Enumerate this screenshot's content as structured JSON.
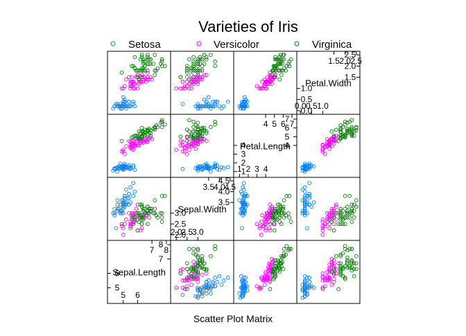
{
  "chart_data": {
    "type": "scatter",
    "title": "Varieties of Iris",
    "xlabel": "Scatter Plot Matrix",
    "ylabel": "",
    "legend_placement": "top",
    "grid": false,
    "variables": [
      "Sepal.Length",
      "Sepal.Width",
      "Petal.Length",
      "Petal.Width"
    ],
    "ranges": {
      "Sepal.Length": [
        4.0,
        8.2
      ],
      "Sepal.Width": [
        1.8,
        4.6
      ],
      "Petal.Length": [
        0.5,
        7.4
      ],
      "Petal.Width": [
        -0.1,
        2.6
      ]
    },
    "diagonal_ticks": {
      "Sepal.Length": {
        "lower": [
          5,
          6
        ],
        "upper": [
          7,
          8
        ]
      },
      "Sepal.Width": {
        "lower": [
          2.0,
          2.5,
          3.0
        ],
        "upper": [
          3.5,
          4.0,
          4.5
        ]
      },
      "Petal.Length": {
        "lower": [
          1,
          2,
          3,
          4
        ],
        "upper": [
          4,
          5,
          6,
          7
        ]
      },
      "Petal.Width": {
        "lower": [
          0.0,
          0.5,
          1.0
        ],
        "upper": [
          1.5,
          2.0,
          2.5
        ]
      }
    },
    "diagonal_tick_labels": {
      "Sepal.Length": {
        "lower": [
          "5",
          "6"
        ],
        "upper": [
          "7",
          "8"
        ]
      },
      "Sepal.Width": {
        "lower": [
          "2.0",
          "2.5",
          "3.0"
        ],
        "upper": [
          "3.5",
          "4.0",
          "4.5"
        ]
      },
      "Petal.Length": {
        "lower": [
          "1",
          "2",
          "3",
          "4"
        ],
        "upper": [
          "4",
          "5",
          "6",
          "7"
        ]
      },
      "Petal.Width": {
        "lower": [
          "0.0",
          "0.5",
          "1.0"
        ],
        "upper": [
          "1.5",
          "2.0",
          "2.5"
        ]
      }
    },
    "series": [
      {
        "name": "Setosa",
        "color": "#0080ff",
        "marker": "circle",
        "points": [
          [
            5.1,
            3.5,
            1.4,
            0.2
          ],
          [
            4.9,
            3.0,
            1.4,
            0.2
          ],
          [
            4.7,
            3.2,
            1.3,
            0.2
          ],
          [
            4.6,
            3.1,
            1.5,
            0.2
          ],
          [
            5.0,
            3.6,
            1.4,
            0.2
          ],
          [
            5.4,
            3.9,
            1.7,
            0.4
          ],
          [
            4.6,
            3.4,
            1.4,
            0.3
          ],
          [
            5.0,
            3.4,
            1.5,
            0.2
          ],
          [
            4.4,
            2.9,
            1.4,
            0.2
          ],
          [
            4.9,
            3.1,
            1.5,
            0.1
          ],
          [
            5.4,
            3.7,
            1.5,
            0.2
          ],
          [
            4.8,
            3.4,
            1.6,
            0.2
          ],
          [
            4.8,
            3.0,
            1.4,
            0.1
          ],
          [
            4.3,
            3.0,
            1.1,
            0.1
          ],
          [
            5.8,
            4.0,
            1.2,
            0.2
          ],
          [
            5.7,
            4.4,
            1.5,
            0.4
          ],
          [
            5.4,
            3.9,
            1.3,
            0.4
          ],
          [
            5.1,
            3.5,
            1.4,
            0.3
          ],
          [
            5.7,
            3.8,
            1.7,
            0.3
          ],
          [
            5.1,
            3.8,
            1.5,
            0.3
          ],
          [
            5.4,
            3.4,
            1.7,
            0.2
          ],
          [
            5.1,
            3.7,
            1.5,
            0.4
          ],
          [
            4.6,
            3.6,
            1.0,
            0.2
          ],
          [
            5.1,
            3.3,
            1.7,
            0.5
          ],
          [
            4.8,
            3.4,
            1.9,
            0.2
          ],
          [
            5.0,
            3.0,
            1.6,
            0.2
          ],
          [
            5.0,
            3.4,
            1.6,
            0.4
          ],
          [
            5.2,
            3.5,
            1.5,
            0.2
          ],
          [
            5.2,
            3.4,
            1.4,
            0.2
          ],
          [
            4.7,
            3.2,
            1.6,
            0.2
          ],
          [
            4.8,
            3.1,
            1.6,
            0.2
          ],
          [
            5.4,
            3.4,
            1.5,
            0.4
          ],
          [
            5.2,
            4.1,
            1.5,
            0.1
          ],
          [
            5.5,
            4.2,
            1.4,
            0.2
          ],
          [
            4.9,
            3.1,
            1.5,
            0.2
          ],
          [
            5.0,
            3.2,
            1.2,
            0.2
          ],
          [
            5.5,
            3.5,
            1.3,
            0.2
          ],
          [
            4.9,
            3.6,
            1.4,
            0.1
          ],
          [
            4.4,
            3.0,
            1.3,
            0.2
          ],
          [
            5.1,
            3.4,
            1.5,
            0.2
          ],
          [
            5.0,
            3.5,
            1.3,
            0.3
          ],
          [
            4.5,
            2.3,
            1.3,
            0.3
          ],
          [
            4.4,
            3.2,
            1.3,
            0.2
          ],
          [
            5.0,
            3.5,
            1.6,
            0.6
          ],
          [
            5.1,
            3.8,
            1.9,
            0.4
          ],
          [
            4.8,
            3.0,
            1.4,
            0.3
          ],
          [
            5.1,
            3.8,
            1.6,
            0.2
          ],
          [
            4.6,
            3.2,
            1.4,
            0.2
          ],
          [
            5.3,
            3.7,
            1.5,
            0.2
          ],
          [
            5.0,
            3.3,
            1.4,
            0.2
          ]
        ]
      },
      {
        "name": "Versicolor",
        "color": "#ff00ff",
        "marker": "circle",
        "points": [
          [
            7.0,
            3.2,
            4.7,
            1.4
          ],
          [
            6.4,
            3.2,
            4.5,
            1.5
          ],
          [
            6.9,
            3.1,
            4.9,
            1.5
          ],
          [
            5.5,
            2.3,
            4.0,
            1.3
          ],
          [
            6.5,
            2.8,
            4.6,
            1.5
          ],
          [
            5.7,
            2.8,
            4.5,
            1.3
          ],
          [
            6.3,
            3.3,
            4.7,
            1.6
          ],
          [
            4.9,
            2.4,
            3.3,
            1.0
          ],
          [
            6.6,
            2.9,
            4.6,
            1.3
          ],
          [
            5.2,
            2.7,
            3.9,
            1.4
          ],
          [
            5.0,
            2.0,
            3.5,
            1.0
          ],
          [
            5.9,
            3.0,
            4.2,
            1.5
          ],
          [
            6.0,
            2.2,
            4.0,
            1.0
          ],
          [
            6.1,
            2.9,
            4.7,
            1.4
          ],
          [
            5.6,
            2.9,
            3.6,
            1.3
          ],
          [
            6.7,
            3.1,
            4.4,
            1.4
          ],
          [
            5.6,
            3.0,
            4.5,
            1.5
          ],
          [
            5.8,
            2.7,
            4.1,
            1.0
          ],
          [
            6.2,
            2.2,
            4.5,
            1.5
          ],
          [
            5.6,
            2.5,
            3.9,
            1.1
          ],
          [
            5.9,
            3.2,
            4.8,
            1.8
          ],
          [
            6.1,
            2.8,
            4.0,
            1.3
          ],
          [
            6.3,
            2.5,
            4.9,
            1.5
          ],
          [
            6.1,
            2.8,
            4.7,
            1.2
          ],
          [
            6.4,
            2.9,
            4.3,
            1.3
          ],
          [
            6.6,
            3.0,
            4.4,
            1.4
          ],
          [
            6.8,
            2.8,
            4.8,
            1.4
          ],
          [
            6.7,
            3.0,
            5.0,
            1.7
          ],
          [
            6.0,
            2.9,
            4.5,
            1.5
          ],
          [
            5.7,
            2.6,
            3.5,
            1.0
          ],
          [
            5.5,
            2.4,
            3.8,
            1.1
          ],
          [
            5.5,
            2.4,
            3.7,
            1.0
          ],
          [
            5.8,
            2.7,
            3.9,
            1.2
          ],
          [
            6.0,
            2.7,
            5.1,
            1.6
          ],
          [
            5.4,
            3.0,
            4.5,
            1.5
          ],
          [
            6.0,
            3.4,
            4.5,
            1.6
          ],
          [
            6.7,
            3.1,
            4.7,
            1.5
          ],
          [
            6.3,
            2.3,
            4.4,
            1.3
          ],
          [
            5.6,
            3.0,
            4.1,
            1.3
          ],
          [
            5.5,
            2.5,
            4.0,
            1.3
          ],
          [
            5.5,
            2.6,
            4.4,
            1.2
          ],
          [
            6.1,
            3.0,
            4.6,
            1.4
          ],
          [
            5.8,
            2.6,
            4.0,
            1.2
          ],
          [
            5.0,
            2.3,
            3.3,
            1.0
          ],
          [
            5.6,
            2.7,
            4.2,
            1.3
          ],
          [
            5.7,
            3.0,
            4.2,
            1.2
          ],
          [
            5.7,
            2.9,
            4.2,
            1.3
          ],
          [
            6.2,
            2.9,
            4.3,
            1.3
          ],
          [
            5.1,
            2.5,
            3.0,
            1.1
          ],
          [
            5.7,
            2.8,
            4.1,
            1.3
          ]
        ]
      },
      {
        "name": "Virginica",
        "color": "#008000",
        "marker": "circle",
        "points": [
          [
            6.3,
            3.3,
            6.0,
            2.5
          ],
          [
            5.8,
            2.7,
            5.1,
            1.9
          ],
          [
            7.1,
            3.0,
            5.9,
            2.1
          ],
          [
            6.3,
            2.9,
            5.6,
            1.8
          ],
          [
            6.5,
            3.0,
            5.8,
            2.2
          ],
          [
            7.6,
            3.0,
            6.6,
            2.1
          ],
          [
            4.9,
            2.5,
            4.5,
            1.7
          ],
          [
            7.3,
            2.9,
            6.3,
            1.8
          ],
          [
            6.7,
            2.5,
            5.8,
            1.8
          ],
          [
            7.2,
            3.6,
            6.1,
            2.5
          ],
          [
            6.5,
            3.2,
            5.1,
            2.0
          ],
          [
            6.4,
            2.7,
            5.3,
            1.9
          ],
          [
            6.8,
            3.0,
            5.5,
            2.1
          ],
          [
            5.7,
            2.5,
            5.0,
            2.0
          ],
          [
            5.8,
            2.8,
            5.1,
            2.4
          ],
          [
            6.4,
            3.2,
            5.3,
            2.3
          ],
          [
            6.5,
            3.0,
            5.5,
            1.8
          ],
          [
            7.7,
            3.8,
            6.7,
            2.2
          ],
          [
            7.7,
            2.6,
            6.9,
            2.3
          ],
          [
            6.0,
            2.2,
            5.0,
            1.5
          ],
          [
            6.9,
            3.2,
            5.7,
            2.3
          ],
          [
            5.6,
            2.8,
            4.9,
            2.0
          ],
          [
            7.7,
            2.8,
            6.7,
            2.0
          ],
          [
            6.3,
            2.7,
            4.9,
            1.8
          ],
          [
            6.7,
            3.3,
            5.7,
            2.1
          ],
          [
            7.2,
            3.2,
            6.0,
            1.8
          ],
          [
            6.2,
            2.8,
            4.8,
            1.8
          ],
          [
            6.1,
            3.0,
            4.9,
            1.8
          ],
          [
            6.4,
            2.8,
            5.6,
            2.1
          ],
          [
            7.2,
            3.0,
            5.8,
            1.6
          ],
          [
            7.4,
            2.8,
            6.1,
            1.9
          ],
          [
            7.9,
            3.8,
            6.4,
            2.0
          ],
          [
            6.4,
            2.8,
            5.6,
            2.2
          ],
          [
            6.3,
            2.8,
            5.1,
            1.5
          ],
          [
            6.1,
            2.6,
            5.6,
            1.4
          ],
          [
            7.7,
            3.0,
            6.1,
            2.3
          ],
          [
            6.3,
            3.4,
            5.6,
            2.4
          ],
          [
            6.4,
            3.1,
            5.5,
            1.8
          ],
          [
            6.0,
            3.0,
            4.8,
            1.8
          ],
          [
            6.9,
            3.1,
            5.4,
            2.1
          ],
          [
            6.7,
            3.1,
            5.6,
            2.4
          ],
          [
            6.9,
            3.1,
            5.1,
            2.3
          ],
          [
            5.8,
            2.7,
            5.1,
            1.9
          ],
          [
            6.8,
            3.2,
            5.9,
            2.3
          ],
          [
            6.7,
            3.3,
            5.7,
            2.5
          ],
          [
            6.7,
            3.0,
            5.2,
            2.3
          ],
          [
            6.3,
            2.5,
            5.0,
            1.9
          ],
          [
            6.5,
            3.0,
            5.2,
            2.0
          ],
          [
            6.2,
            3.4,
            5.4,
            2.3
          ],
          [
            5.9,
            3.0,
            5.1,
            1.8
          ]
        ]
      }
    ]
  }
}
